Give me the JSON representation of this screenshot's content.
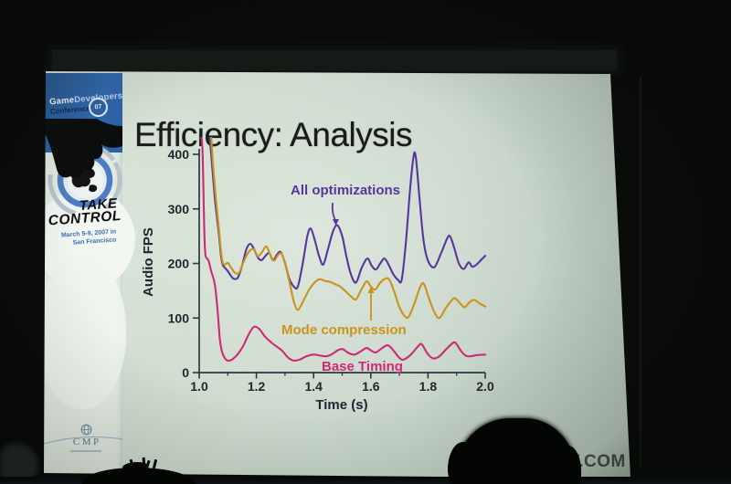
{
  "slide": {
    "title": "Efficiency: Analysis",
    "footer_url": "NF.COM"
  },
  "sidebar": {
    "logo": {
      "game": "Game",
      "developers": "Developers",
      "conference": "Conference",
      "badge": "07"
    },
    "tagline": {
      "line1": "TAKE",
      "line2": "CONTROL"
    },
    "dates": {
      "line1": "March 5-9, 2007 in",
      "line2": "San Francisco"
    },
    "cmp_label": "CMP"
  },
  "chart_data": {
    "type": "line",
    "title": "Efficiency: Analysis",
    "xlabel": "Time (s)",
    "ylabel": "Audio FPS",
    "xlim": [
      1.0,
      2.0
    ],
    "ylim": [
      0,
      400
    ],
    "x_ticks": [
      1.0,
      1.2,
      1.4,
      1.6,
      1.8,
      2.0
    ],
    "x_minor_ticks": [
      1.1,
      1.3,
      1.5,
      1.7,
      1.9
    ],
    "y_ticks": [
      0,
      100,
      200,
      300,
      400
    ],
    "grid": false,
    "legend_position": "inline-labels",
    "series": [
      {
        "name": "All optimizations",
        "color": "#55379b",
        "points": [
          [
            1.036,
            435
          ],
          [
            1.042,
            400
          ],
          [
            1.048,
            362
          ],
          [
            1.055,
            318
          ],
          [
            1.062,
            285
          ],
          [
            1.07,
            248
          ],
          [
            1.076,
            215
          ],
          [
            1.082,
            198
          ],
          [
            1.09,
            192
          ],
          [
            1.1,
            186
          ],
          [
            1.11,
            178
          ],
          [
            1.12,
            172
          ],
          [
            1.135,
            174
          ],
          [
            1.15,
            196
          ],
          [
            1.165,
            226
          ],
          [
            1.178,
            236
          ],
          [
            1.19,
            228
          ],
          [
            1.205,
            211
          ],
          [
            1.218,
            206
          ],
          [
            1.232,
            214
          ],
          [
            1.245,
            219
          ],
          [
            1.258,
            206
          ],
          [
            1.272,
            216
          ],
          [
            1.285,
            221
          ],
          [
            1.3,
            201
          ],
          [
            1.315,
            172
          ],
          [
            1.332,
            157
          ],
          [
            1.345,
            158
          ],
          [
            1.362,
            200
          ],
          [
            1.378,
            250
          ],
          [
            1.39,
            264
          ],
          [
            1.405,
            241
          ],
          [
            1.42,
            212
          ],
          [
            1.434,
            198
          ],
          [
            1.45,
            226
          ],
          [
            1.468,
            259
          ],
          [
            1.483,
            270
          ],
          [
            1.5,
            250
          ],
          [
            1.515,
            212
          ],
          [
            1.53,
            181
          ],
          [
            1.548,
            165
          ],
          [
            1.568,
            192
          ],
          [
            1.588,
            209
          ],
          [
            1.603,
            196
          ],
          [
            1.618,
            189
          ],
          [
            1.633,
            200
          ],
          [
            1.648,
            209
          ],
          [
            1.663,
            197
          ],
          [
            1.678,
            181
          ],
          [
            1.695,
            170
          ],
          [
            1.708,
            170
          ],
          [
            1.722,
            235
          ],
          [
            1.738,
            340
          ],
          [
            1.75,
            398
          ],
          [
            1.758,
            392
          ],
          [
            1.772,
            310
          ],
          [
            1.785,
            240
          ],
          [
            1.8,
            205
          ],
          [
            1.822,
            193
          ],
          [
            1.845,
            218
          ],
          [
            1.868,
            247
          ],
          [
            1.878,
            249
          ],
          [
            1.892,
            228
          ],
          [
            1.908,
            200
          ],
          [
            1.925,
            190
          ],
          [
            1.942,
            202
          ],
          [
            1.955,
            194
          ],
          [
            1.97,
            198
          ],
          [
            1.985,
            206
          ],
          [
            2.0,
            214
          ]
        ]
      },
      {
        "name": "Mode compression",
        "color": "#c9941c",
        "points": [
          [
            1.042,
            435
          ],
          [
            1.048,
            385
          ],
          [
            1.055,
            340
          ],
          [
            1.062,
            300
          ],
          [
            1.07,
            258
          ],
          [
            1.076,
            224
          ],
          [
            1.082,
            202
          ],
          [
            1.09,
            198
          ],
          [
            1.1,
            201
          ],
          [
            1.112,
            192
          ],
          [
            1.125,
            183
          ],
          [
            1.138,
            182
          ],
          [
            1.15,
            196
          ],
          [
            1.165,
            214
          ],
          [
            1.18,
            225
          ],
          [
            1.192,
            226
          ],
          [
            1.205,
            213
          ],
          [
            1.22,
            221
          ],
          [
            1.235,
            231
          ],
          [
            1.25,
            214
          ],
          [
            1.262,
            205
          ],
          [
            1.275,
            215
          ],
          [
            1.288,
            218
          ],
          [
            1.302,
            196
          ],
          [
            1.318,
            160
          ],
          [
            1.332,
            128
          ],
          [
            1.345,
            115
          ],
          [
            1.36,
            127
          ],
          [
            1.38,
            148
          ],
          [
            1.4,
            163
          ],
          [
            1.42,
            171
          ],
          [
            1.44,
            168
          ],
          [
            1.458,
            166
          ],
          [
            1.475,
            162
          ],
          [
            1.492,
            158
          ],
          [
            1.51,
            150
          ],
          [
            1.53,
            140
          ],
          [
            1.548,
            134
          ],
          [
            1.565,
            150
          ],
          [
            1.585,
            167
          ],
          [
            1.6,
            158
          ],
          [
            1.615,
            152
          ],
          [
            1.632,
            164
          ],
          [
            1.65,
            172
          ],
          [
            1.665,
            170
          ],
          [
            1.682,
            148
          ],
          [
            1.7,
            120
          ],
          [
            1.718,
            104
          ],
          [
            1.732,
            102
          ],
          [
            1.752,
            126
          ],
          [
            1.772,
            156
          ],
          [
            1.785,
            163
          ],
          [
            1.802,
            138
          ],
          [
            1.822,
            111
          ],
          [
            1.84,
            100
          ],
          [
            1.862,
            118
          ],
          [
            1.882,
            132
          ],
          [
            1.895,
            136
          ],
          [
            1.912,
            127
          ],
          [
            1.928,
            120
          ],
          [
            1.945,
            129
          ],
          [
            1.962,
            133
          ],
          [
            1.98,
            127
          ],
          [
            2.0,
            121
          ]
        ]
      },
      {
        "name": "Base Timing",
        "color": "#cd2a76",
        "points": [
          [
            1.008,
            435
          ],
          [
            1.012,
            400
          ],
          [
            1.015,
            330
          ],
          [
            1.018,
            258
          ],
          [
            1.022,
            215
          ],
          [
            1.032,
            206
          ],
          [
            1.042,
            186
          ],
          [
            1.052,
            168
          ],
          [
            1.058,
            148
          ],
          [
            1.065,
            110
          ],
          [
            1.072,
            62
          ],
          [
            1.08,
            38
          ],
          [
            1.09,
            26
          ],
          [
            1.1,
            22
          ],
          [
            1.115,
            24
          ],
          [
            1.135,
            34
          ],
          [
            1.155,
            50
          ],
          [
            1.175,
            72
          ],
          [
            1.192,
            84
          ],
          [
            1.21,
            80
          ],
          [
            1.23,
            66
          ],
          [
            1.25,
            56
          ],
          [
            1.27,
            48
          ],
          [
            1.29,
            40
          ],
          [
            1.31,
            28
          ],
          [
            1.33,
            22
          ],
          [
            1.352,
            24
          ],
          [
            1.375,
            30
          ],
          [
            1.4,
            33
          ],
          [
            1.425,
            31
          ],
          [
            1.445,
            30
          ],
          [
            1.465,
            34
          ],
          [
            1.485,
            41
          ],
          [
            1.502,
            43
          ],
          [
            1.522,
            36
          ],
          [
            1.542,
            33
          ],
          [
            1.562,
            38
          ],
          [
            1.585,
            45
          ],
          [
            1.602,
            40
          ],
          [
            1.618,
            37
          ],
          [
            1.64,
            45
          ],
          [
            1.66,
            50
          ],
          [
            1.68,
            40
          ],
          [
            1.7,
            27
          ],
          [
            1.715,
            24
          ],
          [
            1.74,
            33
          ],
          [
            1.765,
            48
          ],
          [
            1.778,
            52
          ],
          [
            1.798,
            35
          ],
          [
            1.818,
            26
          ],
          [
            1.84,
            30
          ],
          [
            1.862,
            42
          ],
          [
            1.88,
            51
          ],
          [
            1.895,
            55
          ],
          [
            1.915,
            40
          ],
          [
            1.932,
            31
          ],
          [
            1.95,
            30
          ],
          [
            1.97,
            32
          ],
          [
            2.0,
            33
          ]
        ]
      }
    ]
  }
}
